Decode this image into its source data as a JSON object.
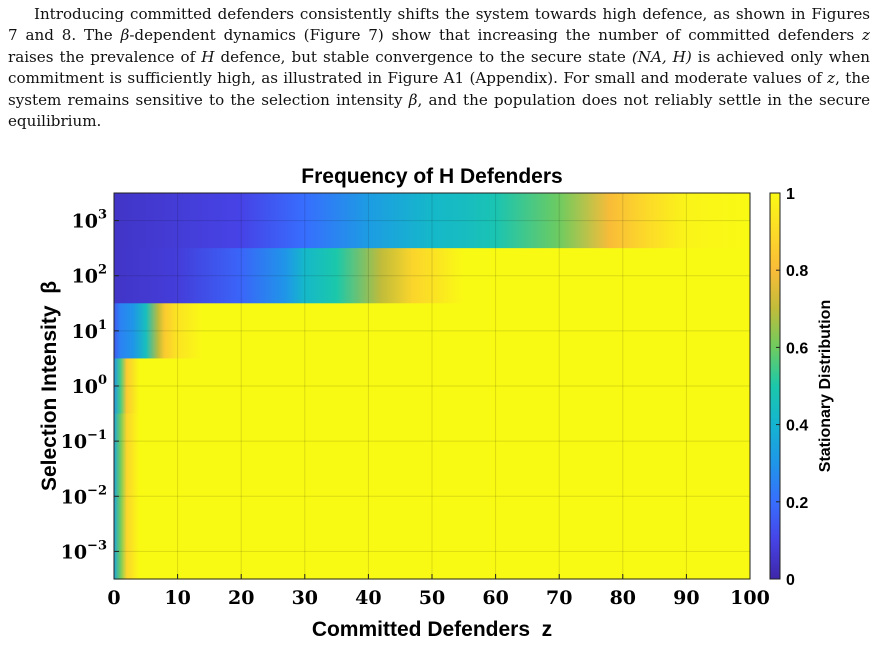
{
  "paragraph": {
    "s1": "Introducing committed defenders consistently shifts the system towards high defence, as shown in Figures 7 and 8. The ",
    "beta1": "β",
    "s2": "-dependent dynamics (Figure 7) show that increasing the number of committed defenders ",
    "z1": "z",
    "s3": " raises the prevalence of ",
    "H1": "H",
    "s4": " defence, but stable convergence to the secure state ",
    "state": "(NA, H)",
    "s5": " is achieved only when commitment is sufficiently high, as illustrated in Figure A1 (Appendix). For small and moderate values of ",
    "z2": "z",
    "s6": ", the system remains sensitive to the selection intensity ",
    "beta2": "β",
    "s7": ", and the population does not reliably settle in the secure equilibrium."
  },
  "chart_data": {
    "type": "heatmap",
    "title": "Frequency of H Defenders",
    "xlabel": "Committed Defenders  z",
    "ylabel": "Selection Intensity  β",
    "colorbar_label": "Stationary Distribution",
    "x_ticks": [
      "0",
      "10",
      "20",
      "30",
      "40",
      "50",
      "60",
      "70",
      "80",
      "90",
      "100"
    ],
    "x_values": [
      0,
      10,
      20,
      30,
      40,
      50,
      60,
      70,
      80,
      90,
      100
    ],
    "xlim": [
      0,
      100
    ],
    "y_ticks": [
      {
        "base": "10",
        "exp": "3"
      },
      {
        "base": "10",
        "exp": "2"
      },
      {
        "base": "10",
        "exp": "1"
      },
      {
        "base": "10",
        "exp": "0"
      },
      {
        "base": "10",
        "exp": "−1"
      },
      {
        "base": "10",
        "exp": "−2"
      },
      {
        "base": "10",
        "exp": "−3"
      }
    ],
    "colorbar_ticks": [
      "1",
      "0.8",
      "0.6",
      "0.4",
      "0.2",
      "0"
    ],
    "clim": [
      0,
      1
    ],
    "colormap": "parula",
    "grid": true,
    "rows": [
      {
        "beta": "10^3",
        "z": [
          0,
          20,
          30,
          40,
          50,
          55,
          60,
          70,
          78,
          84,
          90,
          100
        ],
        "v": [
          0.05,
          0.1,
          0.2,
          0.32,
          0.42,
          0.44,
          0.48,
          0.6,
          0.8,
          0.9,
          0.98,
          1.0
        ]
      },
      {
        "beta": "10^2",
        "z": [
          0,
          10,
          20,
          27,
          30,
          35,
          42,
          47,
          50,
          55,
          100
        ],
        "v": [
          0.05,
          0.08,
          0.18,
          0.3,
          0.42,
          0.5,
          0.7,
          0.88,
          0.92,
          1.0,
          1.0
        ]
      },
      {
        "beta": "10^1",
        "z": [
          0,
          1,
          3,
          5,
          7,
          8,
          10,
          14,
          100
        ],
        "v": [
          0.15,
          0.25,
          0.3,
          0.45,
          0.7,
          0.85,
          0.93,
          1.0,
          1.0
        ]
      },
      {
        "beta": "10^0",
        "z": [
          0,
          1,
          2,
          4,
          100
        ],
        "v": [
          0.3,
          0.55,
          0.85,
          1.0,
          1.0
        ]
      },
      {
        "beta": "10^-1",
        "z": [
          0,
          1,
          2,
          4,
          100
        ],
        "v": [
          0.35,
          0.6,
          0.88,
          1.0,
          1.0
        ]
      },
      {
        "beta": "10^-2",
        "z": [
          0,
          1,
          2,
          4,
          100
        ],
        "v": [
          0.35,
          0.6,
          0.88,
          1.0,
          1.0
        ]
      },
      {
        "beta": "10^-3",
        "z": [
          0,
          1,
          2,
          4,
          100
        ],
        "v": [
          0.35,
          0.6,
          0.88,
          1.0,
          1.0
        ]
      }
    ]
  }
}
